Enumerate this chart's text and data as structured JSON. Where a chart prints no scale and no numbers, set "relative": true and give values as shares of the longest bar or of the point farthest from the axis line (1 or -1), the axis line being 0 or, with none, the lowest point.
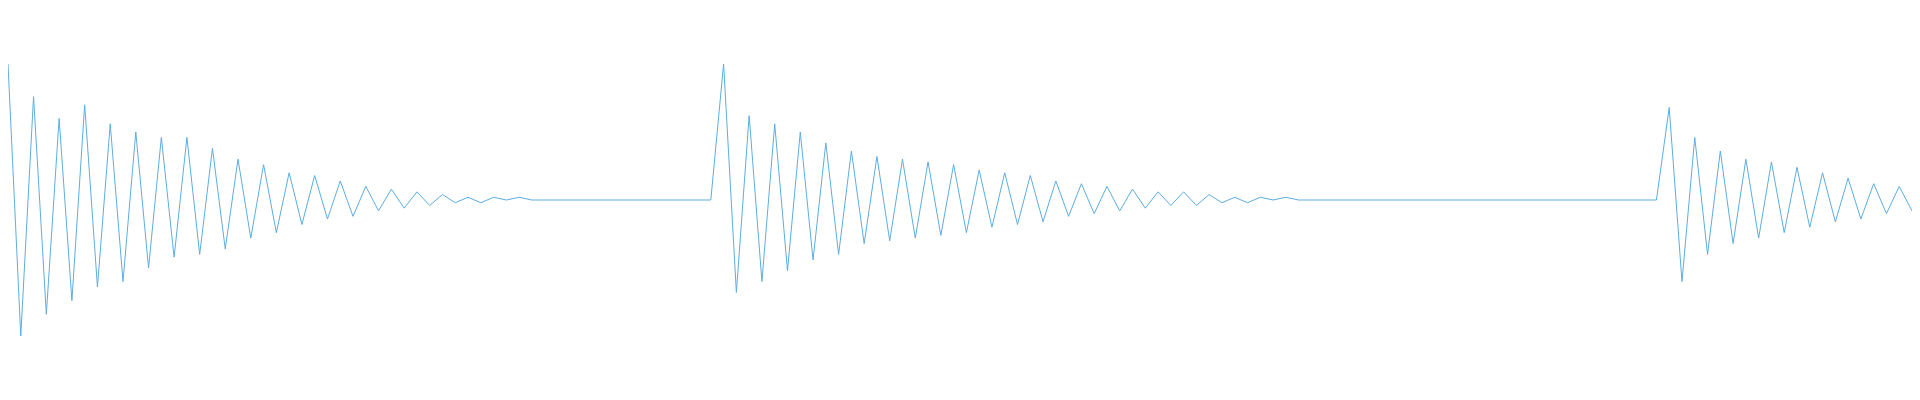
{
  "chart_data": {
    "type": "line",
    "relative": true,
    "color": "#5dade2",
    "categories": [
      null,
      null,
      null,
      null,
      null,
      null,
      null,
      null,
      null,
      null,
      null,
      null,
      null,
      null,
      null,
      null,
      null,
      null,
      null,
      null,
      null,
      null,
      null,
      null,
      null,
      null,
      null,
      null,
      null,
      null,
      null,
      null,
      null,
      null,
      null,
      null,
      null,
      null,
      null,
      null,
      null,
      null,
      null,
      null,
      null,
      null,
      null,
      null,
      null,
      null,
      null,
      null,
      null,
      null,
      null,
      null,
      null,
      null,
      null,
      null,
      null,
      null,
      null,
      null,
      null,
      null,
      null,
      null,
      null,
      null,
      null,
      null,
      null,
      null,
      null,
      null,
      null,
      null,
      null,
      null,
      null,
      null,
      null,
      null,
      null,
      null,
      null,
      null,
      null,
      null,
      null,
      null,
      null,
      null,
      null,
      null,
      null,
      null,
      null,
      null,
      null,
      null,
      null,
      null,
      null,
      null,
      null,
      null,
      null,
      null,
      null,
      null,
      null,
      null,
      null,
      null,
      null,
      null,
      null,
      null,
      null,
      null,
      null,
      null,
      null,
      null,
      null,
      null,
      null,
      null,
      null,
      null,
      null,
      null,
      null,
      null,
      null,
      null,
      null,
      null,
      null,
      null,
      null,
      null,
      null,
      null,
      null,
      null,
      null,
      null
    ],
    "values": [
      1.0,
      0.0,
      0.88,
      0.08,
      0.8,
      0.13,
      0.85,
      0.18,
      0.78,
      0.2,
      0.75,
      0.25,
      0.73,
      0.29,
      0.73,
      0.3,
      0.69,
      0.32,
      0.65,
      0.36,
      0.63,
      0.38,
      0.6,
      0.41,
      0.59,
      0.43,
      0.57,
      0.44,
      0.55,
      0.46,
      0.54,
      0.47,
      0.53,
      0.48,
      0.52,
      0.49,
      0.51,
      0.49,
      0.51,
      0.5,
      0.51,
      0.5,
      0.5,
      0.5,
      0.5,
      0.5,
      0.5,
      0.5,
      0.5,
      0.5,
      0.5,
      0.5,
      0.5,
      0.5,
      0.5,
      0.5,
      1.0,
      0.16,
      0.81,
      0.2,
      0.78,
      0.24,
      0.75,
      0.28,
      0.71,
      0.3,
      0.68,
      0.34,
      0.66,
      0.35,
      0.65,
      0.36,
      0.64,
      0.37,
      0.63,
      0.38,
      0.61,
      0.4,
      0.6,
      0.41,
      0.59,
      0.42,
      0.57,
      0.44,
      0.56,
      0.45,
      0.55,
      0.46,
      0.54,
      0.47,
      0.53,
      0.48,
      0.53,
      0.48,
      0.52,
      0.49,
      0.51,
      0.49,
      0.51,
      0.5,
      0.51,
      0.5,
      0.5,
      0.5,
      0.5,
      0.5,
      0.5,
      0.5,
      0.5,
      0.5,
      0.5,
      0.5,
      0.5,
      0.5,
      0.5,
      0.5,
      0.5,
      0.5,
      0.5,
      0.5,
      0.5,
      0.5,
      0.5,
      0.5,
      0.5,
      0.5,
      0.5,
      0.5,
      0.5,
      0.5,
      0.84,
      0.2,
      0.73,
      0.3,
      0.68,
      0.34,
      0.65,
      0.36,
      0.64,
      0.38,
      0.62,
      0.4,
      0.6,
      0.42,
      0.58,
      0.43,
      0.56,
      0.45,
      0.55,
      0.46
    ]
  }
}
